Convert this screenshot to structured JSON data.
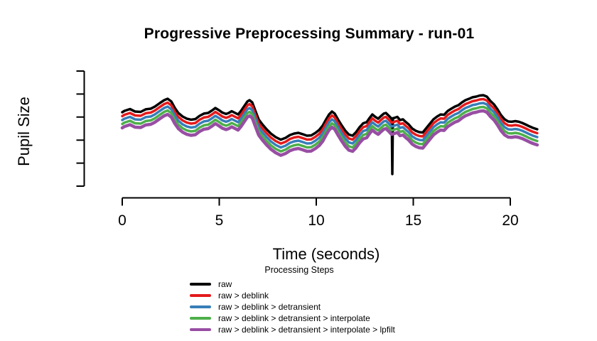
{
  "chart_data": {
    "type": "line",
    "title": "Progressive Preprocessing Summary - run-01",
    "xlabel": "Time (seconds)",
    "ylabel": "Pupil Size",
    "x_ticks": [
      0,
      5,
      10,
      15,
      20
    ],
    "xlim": [
      0,
      21.4
    ],
    "y_axis": {
      "tick_count": 6,
      "labels_visible": false,
      "units": "arbitrary"
    },
    "grid": "off",
    "legend": {
      "title": "Processing Steps",
      "position": "bottom"
    },
    "series": [
      {
        "name": "raw",
        "color": "#000000",
        "lwd": 3.5,
        "has_blink_spike": true
      },
      {
        "name": "raw > deblink",
        "color": "#E41A1C",
        "lwd": 3.5
      },
      {
        "name": "raw > deblink > detransient",
        "color": "#377EB8",
        "lwd": 3.5
      },
      {
        "name": "raw > deblink > detransient > interpolate",
        "color": "#4DAF4A",
        "lwd": 3.5
      },
      {
        "name": "raw > deblink > detransient > interpolate > lpfilt",
        "color": "#984EA3",
        "lwd": 4.5
      }
    ],
    "blink_spike": {
      "t": 13.92,
      "v": 10.5
    },
    "base_curve": [
      [
        0,
        64.2
      ],
      [
        0.11,
        65.4
      ],
      [
        0.4,
        67
      ],
      [
        0.66,
        64.8
      ],
      [
        0.95,
        64.5
      ],
      [
        1.21,
        66.7
      ],
      [
        1.47,
        67.3
      ],
      [
        1.68,
        69.1
      ],
      [
        1.94,
        72.2
      ],
      [
        2.16,
        74.7
      ],
      [
        2.34,
        75.9
      ],
      [
        2.53,
        73.5
      ],
      [
        2.71,
        67.9
      ],
      [
        2.89,
        63.6
      ],
      [
        3.11,
        60.5
      ],
      [
        3.33,
        58.6
      ],
      [
        3.55,
        57.7
      ],
      [
        3.77,
        58.3
      ],
      [
        3.99,
        61.1
      ],
      [
        4.21,
        63
      ],
      [
        4.43,
        63.6
      ],
      [
        4.65,
        66
      ],
      [
        4.8,
        67.9
      ],
      [
        4.98,
        66
      ],
      [
        5.16,
        63.9
      ],
      [
        5.35,
        62.7
      ],
      [
        5.49,
        63.6
      ],
      [
        5.64,
        65.1
      ],
      [
        5.82,
        63.6
      ],
      [
        5.97,
        62.3
      ],
      [
        6.12,
        65.4
      ],
      [
        6.3,
        69.8
      ],
      [
        6.45,
        73.5
      ],
      [
        6.56,
        74.7
      ],
      [
        6.7,
        72.8
      ],
      [
        6.85,
        66
      ],
      [
        7.03,
        58
      ],
      [
        7.22,
        53.7
      ],
      [
        7.44,
        49.4
      ],
      [
        7.66,
        45.7
      ],
      [
        7.91,
        42.6
      ],
      [
        8.17,
        40.4
      ],
      [
        8.42,
        42
      ],
      [
        8.64,
        44.4
      ],
      [
        8.86,
        45.7
      ],
      [
        9.08,
        46.3
      ],
      [
        9.3,
        45.1
      ],
      [
        9.52,
        43.8
      ],
      [
        9.74,
        44.1
      ],
      [
        9.96,
        46.3
      ],
      [
        10.15,
        48.8
      ],
      [
        10.33,
        52.5
      ],
      [
        10.51,
        58
      ],
      [
        10.66,
        62.3
      ],
      [
        10.81,
        64.8
      ],
      [
        10.95,
        63
      ],
      [
        11.14,
        57.4
      ],
      [
        11.32,
        52.5
      ],
      [
        11.5,
        48.1
      ],
      [
        11.68,
        44.8
      ],
      [
        11.87,
        43.8
      ],
      [
        12.05,
        46.9
      ],
      [
        12.23,
        51.2
      ],
      [
        12.42,
        54.6
      ],
      [
        12.6,
        55.6
      ],
      [
        12.75,
        59.3
      ],
      [
        12.89,
        62.3
      ],
      [
        13.04,
        60.2
      ],
      [
        13.19,
        58.6
      ],
      [
        13.33,
        60.8
      ],
      [
        13.48,
        63
      ],
      [
        13.59,
        63.6
      ],
      [
        13.74,
        61.1
      ],
      [
        13.88,
        58.6
      ],
      [
        14.03,
        59.3
      ],
      [
        14.18,
        60.2
      ],
      [
        14.32,
        57.4
      ],
      [
        14.47,
        58
      ],
      [
        14.62,
        55.6
      ],
      [
        14.76,
        53.7
      ],
      [
        14.95,
        50
      ],
      [
        15.13,
        48.1
      ],
      [
        15.31,
        46.9
      ],
      [
        15.49,
        46.6
      ],
      [
        15.68,
        50.6
      ],
      [
        15.86,
        54.3
      ],
      [
        16.04,
        58
      ],
      [
        16.23,
        60.5
      ],
      [
        16.41,
        62.3
      ],
      [
        16.59,
        62
      ],
      [
        16.78,
        65.4
      ],
      [
        16.96,
        67.3
      ],
      [
        17.14,
        69.1
      ],
      [
        17.33,
        70.4
      ],
      [
        17.51,
        72.8
      ],
      [
        17.69,
        74.7
      ],
      [
        17.88,
        75.9
      ],
      [
        18.06,
        77.2
      ],
      [
        18.24,
        77.8
      ],
      [
        18.42,
        78.7
      ],
      [
        18.61,
        79
      ],
      [
        18.79,
        77.8
      ],
      [
        18.97,
        74.1
      ],
      [
        19.16,
        71
      ],
      [
        19.34,
        66.7
      ],
      [
        19.52,
        61.7
      ],
      [
        19.71,
        58
      ],
      [
        19.89,
        56.2
      ],
      [
        20.07,
        55.9
      ],
      [
        20.26,
        56.5
      ],
      [
        20.44,
        55.9
      ],
      [
        20.62,
        54.9
      ],
      [
        20.81,
        53.4
      ],
      [
        20.99,
        51.9
      ],
      [
        21.17,
        50.6
      ],
      [
        21.39,
        49.4
      ]
    ]
  }
}
